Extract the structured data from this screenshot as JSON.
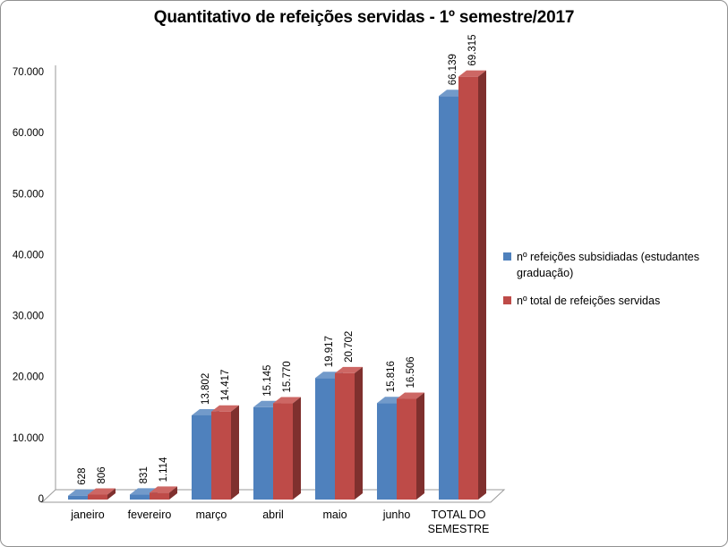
{
  "title": "Quantitativo de refeições servidas - 1º semestre/2017",
  "chart_data": {
    "type": "bar",
    "style": "3d-clustered-column",
    "title": "Quantitativo de refeições servidas - 1º semestre/2017",
    "categories": [
      "janeiro",
      "fevereiro",
      "março",
      "abril",
      "maio",
      "junho",
      "TOTAL DO\nSEMESTRE"
    ],
    "series": [
      {
        "name": "nº refeições subsidiadas (estudantes graduação)",
        "color": "#4F81BD",
        "color_top": "#729ACA",
        "color_side": "#2C4D77",
        "values": [
          628,
          831,
          13802,
          15145,
          19917,
          15816,
          66139
        ],
        "labels": [
          "628",
          "831",
          "13.802",
          "15.145",
          "19.917",
          "15.816",
          "66.139"
        ]
      },
      {
        "name": "nº total de refeições servidas",
        "color": "#BE4B48",
        "color_top": "#CD6764",
        "color_side": "#7F302E",
        "values": [
          806,
          1114,
          14417,
          15770,
          20702,
          16506,
          69315
        ],
        "labels": [
          "806",
          "1.114",
          "14.417",
          "15.770",
          "20.702",
          "16.506",
          "69.315"
        ]
      }
    ],
    "y_axis": {
      "min": 0,
      "max": 70000,
      "step": 10000,
      "tick_labels": [
        "0",
        "10.000",
        "20.000",
        "30.000",
        "40.000",
        "50.000",
        "60.000",
        "70.000"
      ]
    },
    "xlabel": "",
    "ylabel": "",
    "legend_position": "right",
    "gridlines": false
  }
}
